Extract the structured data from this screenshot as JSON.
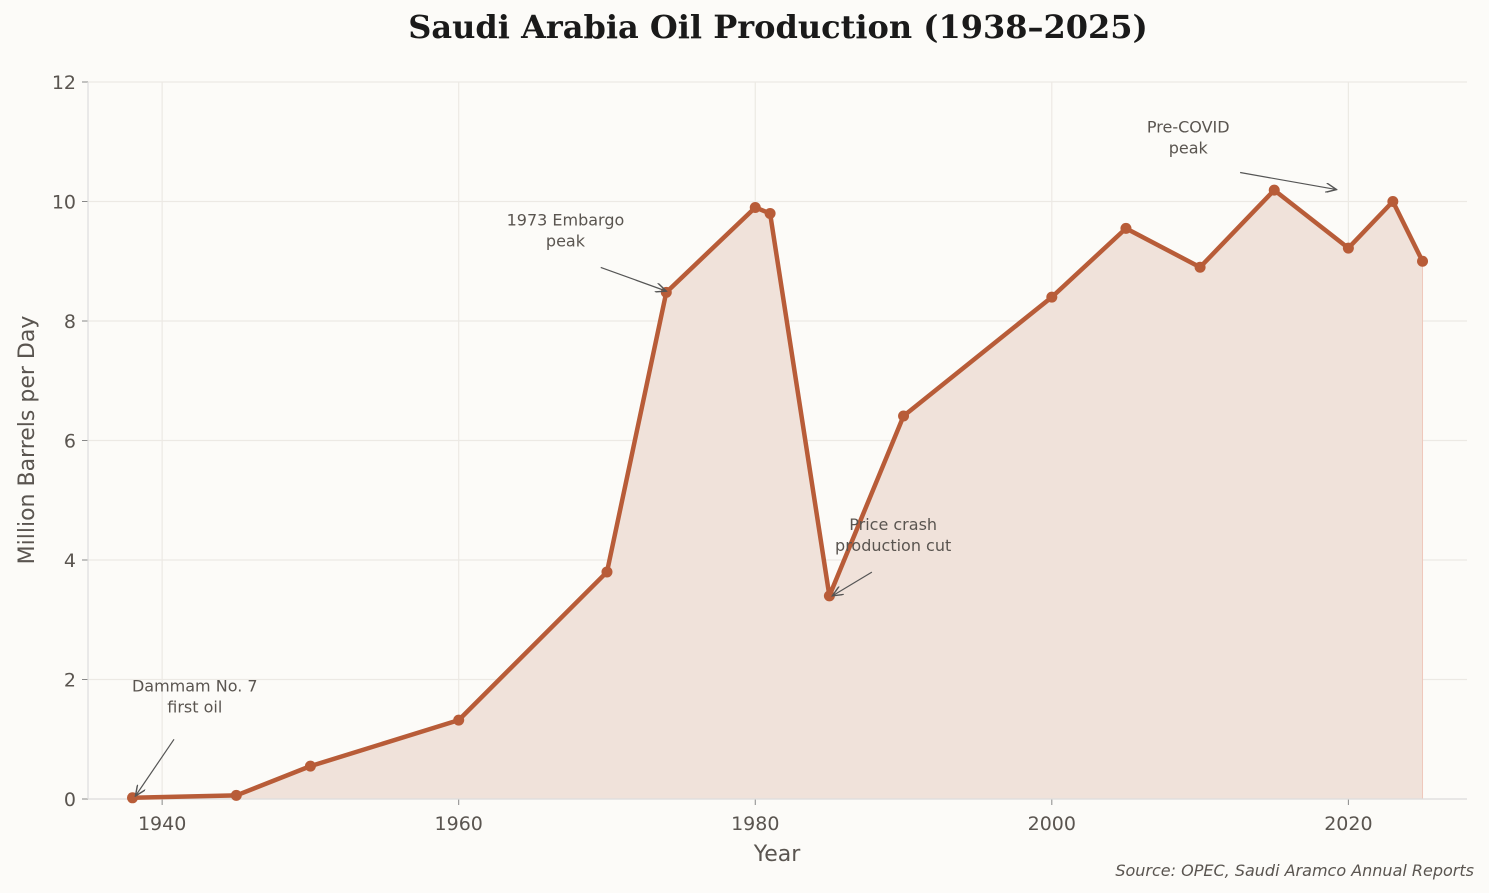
{
  "chart_data": {
    "type": "line",
    "title": "Saudi Arabia Oil Production (1938–2025)",
    "xlabel": "Year",
    "ylabel": "Million Barrels per Day",
    "source": "Source: OPEC, Saudi Aramco Annual Reports",
    "xlim": [
      1935,
      2028
    ],
    "ylim": [
      0,
      12
    ],
    "xticks": [
      1940,
      1960,
      1980,
      2000,
      2020
    ],
    "yticks": [
      0,
      2,
      4,
      6,
      8,
      10,
      12
    ],
    "grid": true,
    "area_fill": true,
    "colors": {
      "line": "#b85c38",
      "fill": "#f0e2da",
      "background": "#fcfbf8",
      "grid": "#ece9e4",
      "text": "#5a5550"
    },
    "x": [
      1938,
      1945,
      1950,
      1960,
      1970,
      1974,
      1980,
      1981,
      1985,
      1990,
      2000,
      2005,
      2010,
      2015,
      2020,
      2023,
      2025
    ],
    "values": [
      0.02,
      0.06,
      0.55,
      1.32,
      3.8,
      8.48,
      9.9,
      9.8,
      3.4,
      6.41,
      8.4,
      9.55,
      8.9,
      10.19,
      9.22,
      10.0,
      9.0
    ],
    "annotations": [
      {
        "lines": [
          "Dammam No. 7",
          "first oil"
        ],
        "xy": [
          1938.2,
          0.05
        ],
        "xytext": [
          1942.2,
          1.6
        ]
      },
      {
        "lines": [
          "1973 Embargo",
          "peak"
        ],
        "xy": [
          1974,
          8.5
        ],
        "xytext": [
          1967.2,
          9.4
        ]
      },
      {
        "lines": [
          "Price crash",
          "production cut"
        ],
        "xy": [
          1985.2,
          3.4
        ],
        "xytext": [
          1989.3,
          4.3
        ]
      },
      {
        "lines": [
          "Pre-COVID",
          "peak"
        ],
        "xy": [
          2019.2,
          10.2
        ],
        "xytext": [
          2009.2,
          10.95
        ]
      }
    ]
  }
}
